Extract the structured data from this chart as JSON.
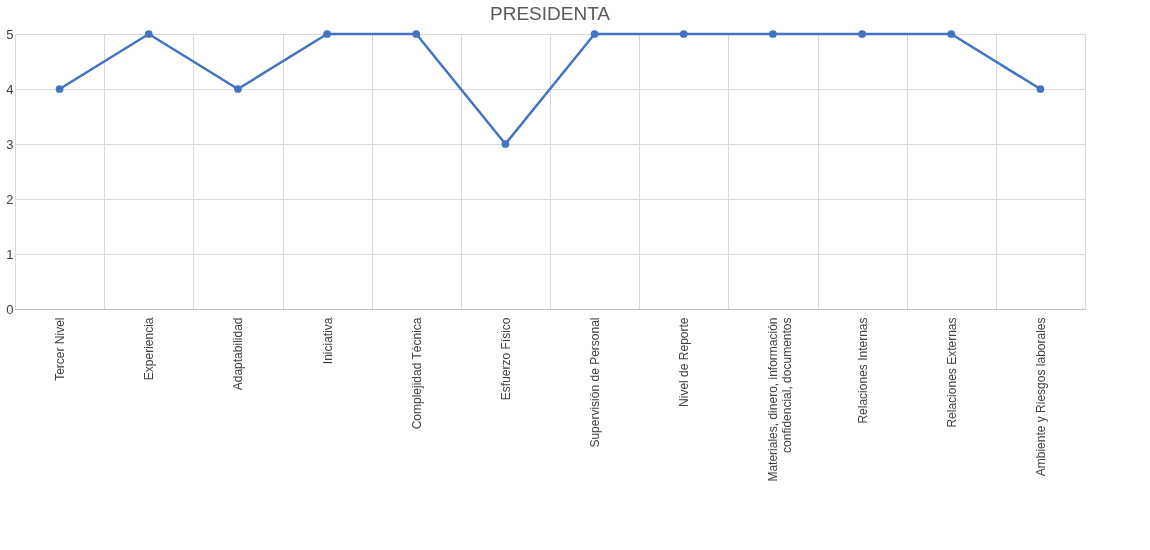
{
  "chart_data": {
    "type": "line",
    "title": "PRESIDENTA",
    "categories": [
      "Tercer Nivel",
      "Experiencia",
      "Adaptabilidad",
      "Iniciativa",
      "Complejidad Técnica",
      "Esfuerzo Físico",
      "Supervisión de Personal",
      "Nivel de Reporte",
      "Materiales, dinero, información\nconfidencial, documentos",
      "Relaciones Internas",
      "Relaciones Externas",
      "Ambiente y Riesgos laborales"
    ],
    "series": [
      {
        "color": "#4472c4",
        "values": [
          4,
          5,
          4,
          5,
          5,
          3,
          5,
          5,
          5,
          5,
          5,
          4
        ]
      }
    ],
    "ylim": [
      0,
      5
    ],
    "yticks": [
      0,
      1,
      2,
      3,
      4,
      5
    ],
    "grid": true,
    "marker": "circle",
    "line_style": "solid"
  }
}
